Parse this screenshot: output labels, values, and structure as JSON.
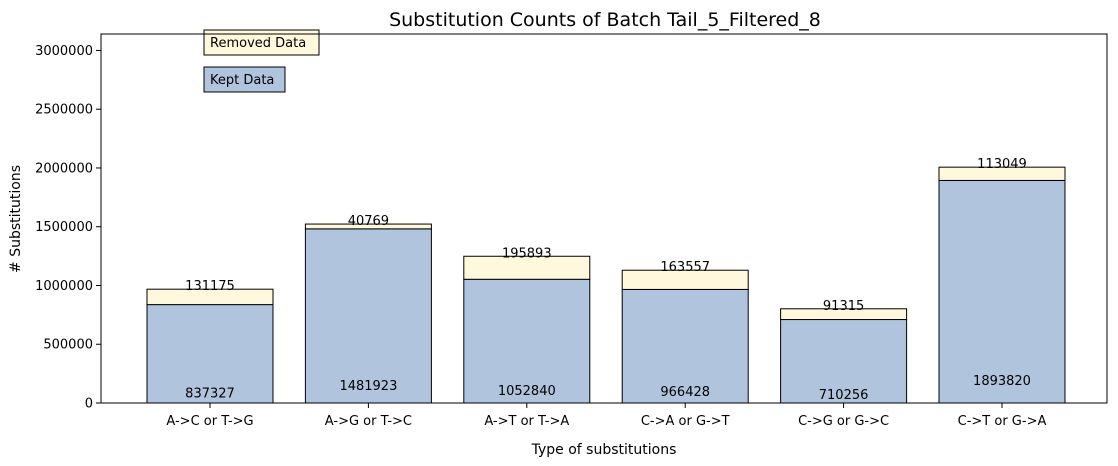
{
  "chart_data": {
    "type": "bar",
    "stacked": true,
    "title": "Substitution Counts of Batch Tail_5_Filtered_8",
    "xlabel": "Type of substitutions",
    "ylabel": "# Substitutions",
    "ylim": [
      0,
      3140000
    ],
    "yticks": [
      0,
      500000,
      1000000,
      1500000,
      2000000,
      2500000,
      3000000
    ],
    "ytick_labels": [
      "0",
      "500000",
      "1000000",
      "1500000",
      "2000000",
      "2500000",
      "3000000"
    ],
    "categories": [
      "A->C or T->G",
      "A->G or T->C",
      "A->T or T->A",
      "C->A or G->T",
      "C->G or G->C",
      "C->T or G->A"
    ],
    "series": [
      {
        "name": "Kept Data",
        "color": "#b0c4de",
        "values": [
          837327,
          1481923,
          1052840,
          966428,
          710256,
          1893820
        ]
      },
      {
        "name": "Removed Data",
        "color": "#fff8dc",
        "values": [
          131175,
          40769,
          195893,
          163557,
          91315,
          113049
        ]
      }
    ],
    "legend": {
      "placement": "top-left",
      "entries": [
        "Removed Data",
        "Kept Data"
      ]
    },
    "grid": false
  }
}
